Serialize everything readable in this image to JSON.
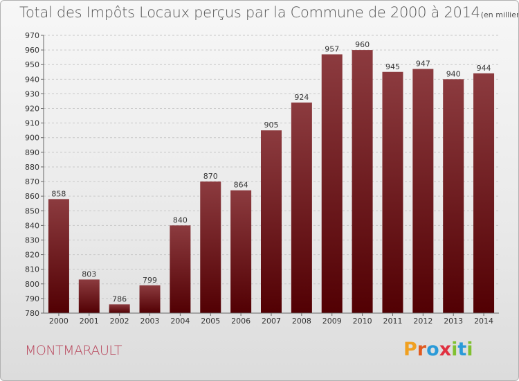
{
  "header": {
    "title": "Total des Impôts Locaux perçus par la Commune de 2000 à 2014",
    "unit_note": "(en milliers d'€)"
  },
  "footer": {
    "commune": "MONTMARAULT",
    "logo_text": "Proxiti"
  },
  "colors": {
    "bar_top": "#8c3b3f",
    "bar_bottom": "#520003",
    "grid": "#c8c8c8",
    "commune_text": "#b8445a"
  },
  "chart_data": {
    "type": "bar",
    "title": "Total des Impôts Locaux perçus par la Commune de 2000 à 2014",
    "xlabel": "",
    "ylabel": "",
    "categories": [
      "2000",
      "2001",
      "2002",
      "2003",
      "2004",
      "2005",
      "2006",
      "2007",
      "2008",
      "2009",
      "2010",
      "2011",
      "2012",
      "2013",
      "2014"
    ],
    "values": [
      858,
      803,
      786,
      799,
      840,
      870,
      864,
      905,
      924,
      957,
      960,
      945,
      947,
      940,
      944
    ],
    "ylim": [
      780,
      970
    ],
    "y_ticks": [
      780,
      790,
      800,
      810,
      820,
      830,
      840,
      850,
      860,
      870,
      880,
      890,
      900,
      910,
      920,
      930,
      940,
      950,
      960,
      970
    ],
    "grid": true,
    "data_labels": true
  }
}
